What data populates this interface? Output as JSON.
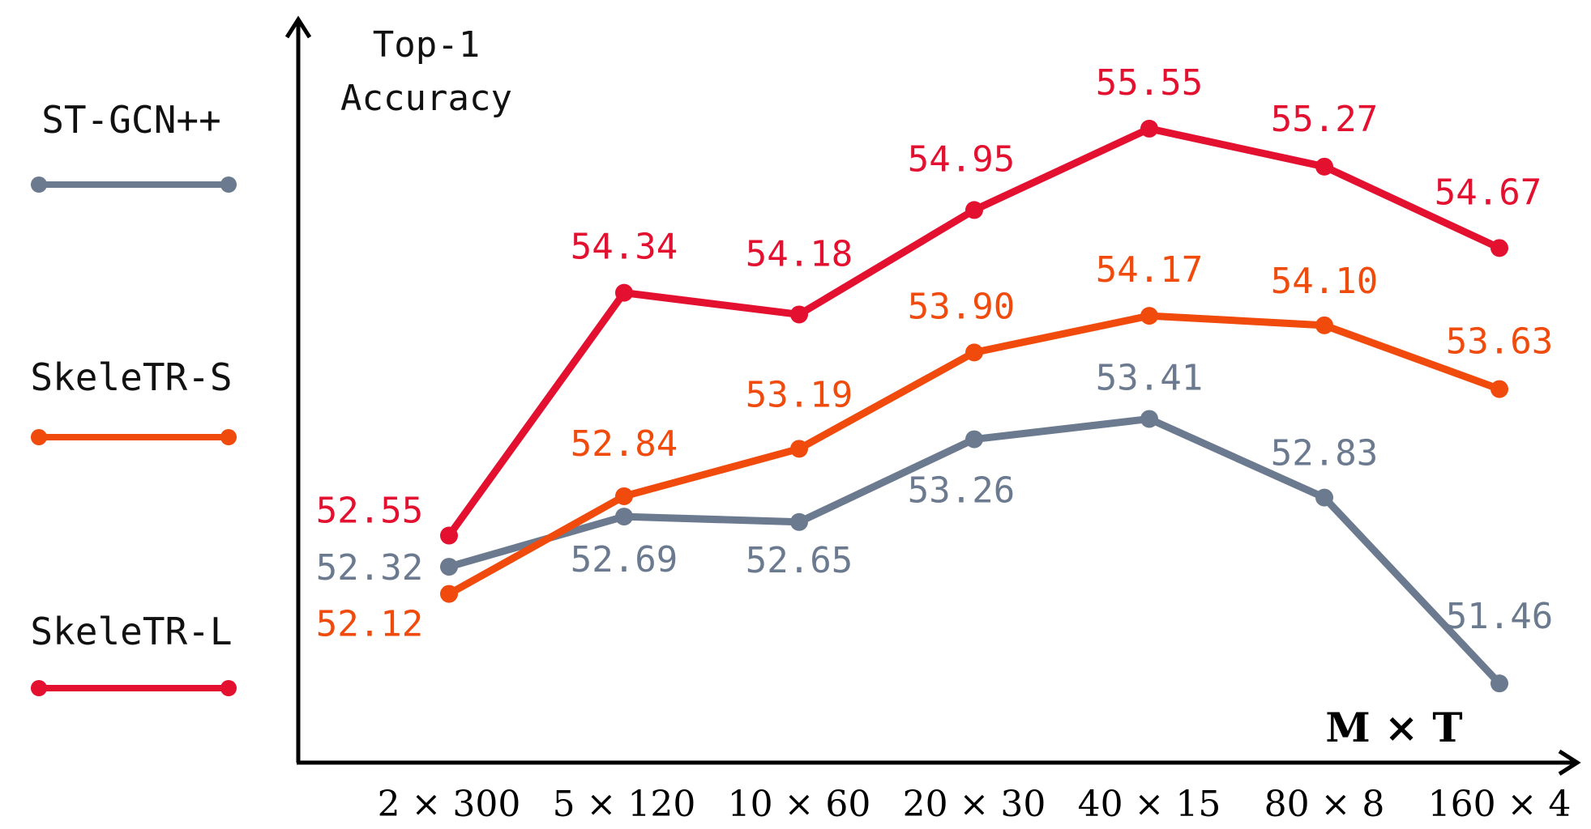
{
  "chart_data": {
    "type": "line",
    "ylabel_line1": "Top-1",
    "ylabel_line2": "Accuracy",
    "xlabel": "M × T",
    "categories": [
      "2 × 300",
      "5 × 120",
      "10 × 60",
      "20 × 30",
      "40 × 15",
      "80 × 8",
      "160 × 4"
    ],
    "legend_position": "left",
    "grid": false,
    "ylim": [
      50.9,
      56.2
    ],
    "series": [
      {
        "name": "ST-GCN++",
        "color": "#6b7a8f",
        "values": [
          52.32,
          52.69,
          52.65,
          53.26,
          53.41,
          52.83,
          51.46
        ],
        "labels": [
          "52.32",
          "52.69",
          "52.65",
          "53.26",
          "53.41",
          "52.83",
          "51.46"
        ]
      },
      {
        "name": "SkeleTR-S",
        "color": "#f04a0c",
        "values": [
          52.12,
          52.84,
          53.19,
          53.9,
          54.17,
          54.1,
          53.63
        ],
        "labels": [
          "52.12",
          "52.84",
          "53.19",
          "53.90",
          "54.17",
          "54.10",
          "53.63"
        ]
      },
      {
        "name": "SkeleTR-L",
        "color": "#e3102f",
        "values": [
          52.55,
          54.34,
          54.18,
          54.95,
          55.55,
          55.27,
          54.67
        ],
        "labels": [
          "52.55",
          "54.34",
          "54.18",
          "54.95",
          "55.55",
          "55.27",
          "54.67"
        ]
      }
    ]
  }
}
